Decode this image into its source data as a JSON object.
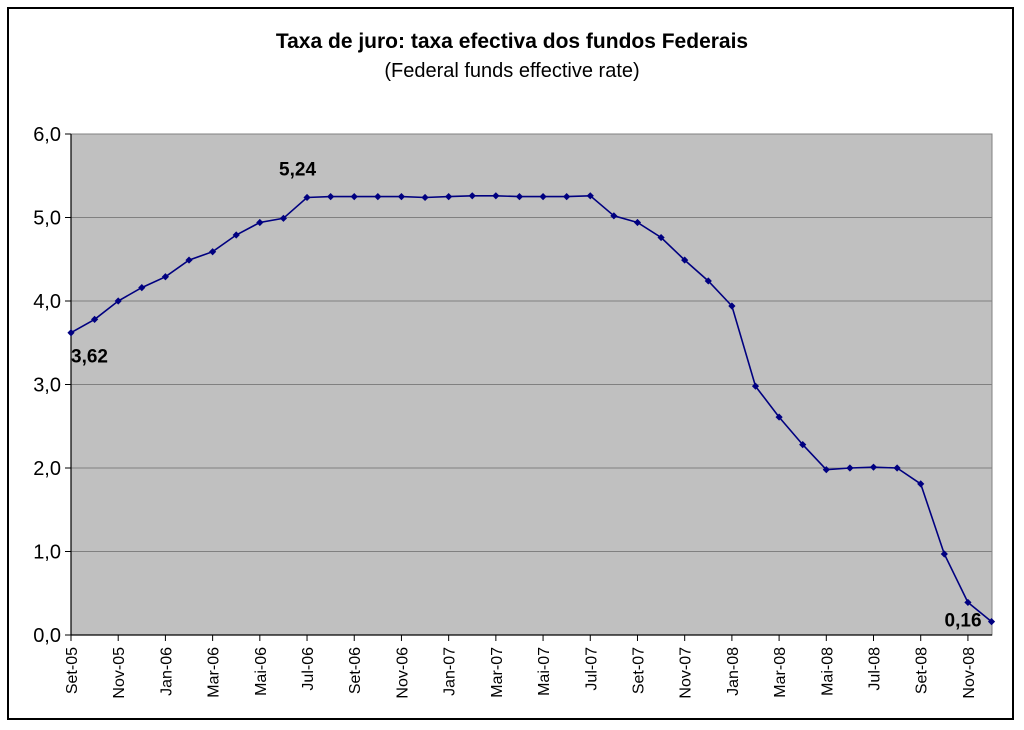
{
  "chart_data": {
    "type": "line",
    "title": "Taxa de juro: taxa efectiva dos fundos Federais",
    "subtitle": "(Federal funds effective rate)",
    "xlabel": "",
    "ylabel": "",
    "ylim": [
      0,
      6
    ],
    "yticks": [
      "0,0",
      "1,0",
      "2,0",
      "3,0",
      "4,0",
      "5,0",
      "6,0"
    ],
    "grid": true,
    "colors": {
      "line": "#000080",
      "plot_bg": "#c0c0c0",
      "grid": "#808080"
    },
    "x": [
      "Set-05",
      "Out-05",
      "Nov-05",
      "Dez-05",
      "Jan-06",
      "Fev-06",
      "Mar-06",
      "Abr-06",
      "Mai-06",
      "Jun-06",
      "Jul-06",
      "Ago-06",
      "Set-06",
      "Out-06",
      "Nov-06",
      "Dez-06",
      "Jan-07",
      "Fev-07",
      "Mar-07",
      "Abr-07",
      "Mai-07",
      "Jun-07",
      "Jul-07",
      "Ago-07",
      "Set-07",
      "Out-07",
      "Nov-07",
      "Dez-07",
      "Jan-08",
      "Fev-08",
      "Mar-08",
      "Abr-08",
      "Mai-08",
      "Jun-08",
      "Jul-08",
      "Ago-08",
      "Set-08",
      "Out-08",
      "Nov-08",
      "Dez-08"
    ],
    "xticks": [
      "Set-05",
      "Nov-05",
      "Jan-06",
      "Mar-06",
      "Mai-06",
      "Jul-06",
      "Set-06",
      "Nov-06",
      "Jan-07",
      "Mar-07",
      "Mai-07",
      "Jul-07",
      "Set-07",
      "Nov-07",
      "Jan-08",
      "Mar-08",
      "Mai-08",
      "Jul-08",
      "Set-08",
      "Nov-08"
    ],
    "series": [
      {
        "values": [
          3.62,
          3.78,
          4.0,
          4.16,
          4.29,
          4.49,
          4.59,
          4.79,
          4.94,
          4.99,
          5.24,
          5.25,
          5.25,
          5.25,
          5.25,
          5.24,
          5.25,
          5.26,
          5.26,
          5.25,
          5.25,
          5.25,
          5.26,
          5.02,
          4.94,
          4.76,
          4.49,
          4.24,
          3.94,
          2.98,
          2.61,
          2.28,
          1.98,
          2.0,
          2.01,
          2.0,
          1.81,
          0.97,
          0.39,
          0.16
        ]
      }
    ],
    "annotations": [
      {
        "index": 0,
        "text": "3,62"
      },
      {
        "index": 10,
        "text": "5,24"
      },
      {
        "index": 39,
        "text": "0,16"
      }
    ]
  }
}
